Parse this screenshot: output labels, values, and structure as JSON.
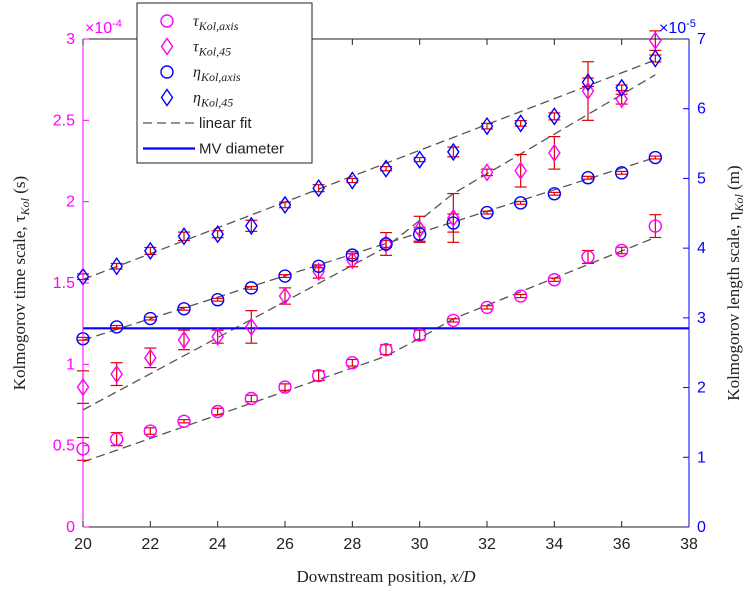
{
  "chart_data": {
    "type": "scatter",
    "xlabel_text": "Downstream position, ",
    "xlabel_var": "x/D",
    "ylabel_left": "Kolmogorov time scale, τ",
    "ylabel_left_sub": "Kol",
    "ylabel_left_unit": " (s)",
    "ylabel_right": "Kolmogorov length scale, η",
    "ylabel_right_sub": "Kol",
    "ylabel_right_unit": " (m)",
    "xlim": [
      20,
      38
    ],
    "xticks": [
      "20",
      "22",
      "24",
      "26",
      "28",
      "30",
      "32",
      "34",
      "36",
      "38"
    ],
    "ylim_left": [
      0,
      3
    ],
    "yticks_left": [
      "0",
      "0.5",
      "1",
      "1.5",
      "2",
      "2.5",
      "3"
    ],
    "left_exponent": "×10",
    "left_exponent_power": "-4",
    "ylim_right": [
      0,
      7
    ],
    "yticks_right": [
      "0",
      "1",
      "2",
      "3",
      "4",
      "5",
      "6",
      "7"
    ],
    "right_exponent": "×10",
    "right_exponent_power": "-5",
    "colors": {
      "tau": "#ff00ff",
      "eta": "#0000ff",
      "errorbar": "#e00000",
      "fit": "#555555",
      "mv": "#0000ff",
      "left_axis": "#ff00ff",
      "right_axis": "#0000ff"
    },
    "series": [
      {
        "name": "τ_Kol,axis",
        "axis": "left",
        "marker": "circle",
        "x": [
          20,
          21,
          22,
          23,
          24,
          25,
          26,
          27,
          28,
          29,
          30,
          31,
          32,
          33,
          34,
          35,
          36,
          37
        ],
        "y": [
          0.48,
          0.54,
          0.59,
          0.65,
          0.71,
          0.79,
          0.86,
          0.93,
          1.01,
          1.09,
          1.18,
          1.27,
          1.35,
          1.42,
          1.52,
          1.66,
          1.7,
          1.85
        ],
        "err": [
          0.07,
          0.04,
          0.02,
          0.01,
          0.02,
          0.02,
          0.02,
          0.03,
          0.02,
          0.03,
          0.03,
          0.01,
          0.01,
          0.01,
          0.01,
          0.04,
          0.02,
          0.07
        ]
      },
      {
        "name": "τ_Kol,45",
        "axis": "left",
        "marker": "diamond",
        "x": [
          20,
          21,
          22,
          23,
          24,
          25,
          26,
          27,
          28,
          29,
          30,
          31,
          32,
          33,
          34,
          35,
          36,
          37
        ],
        "y": [
          0.86,
          0.94,
          1.04,
          1.15,
          1.17,
          1.23,
          1.42,
          1.57,
          1.64,
          1.74,
          1.83,
          1.9,
          2.18,
          2.19,
          2.3,
          2.68,
          2.63,
          2.99
        ],
        "err": [
          0.1,
          0.07,
          0.06,
          0.06,
          0.04,
          0.1,
          0.05,
          0.04,
          0.04,
          0.07,
          0.08,
          0.15,
          0.02,
          0.1,
          0.1,
          0.18,
          0.03,
          0.06
        ]
      },
      {
        "name": "η_Kol,axis",
        "axis": "right",
        "marker": "circle",
        "x": [
          20,
          21,
          22,
          23,
          24,
          25,
          26,
          27,
          28,
          29,
          30,
          31,
          32,
          33,
          34,
          35,
          36,
          37
        ],
        "y": [
          2.7,
          2.87,
          2.99,
          3.13,
          3.26,
          3.43,
          3.6,
          3.74,
          3.9,
          4.06,
          4.2,
          4.36,
          4.51,
          4.65,
          4.78,
          5.01,
          5.08,
          5.3
        ],
        "err": [
          0.02,
          0.02,
          0.02,
          0.02,
          0.02,
          0.02,
          0.02,
          0.02,
          0.05,
          0.05,
          0.1,
          0.13,
          0.02,
          0.02,
          0.02,
          0.02,
          0.02,
          0.02
        ]
      },
      {
        "name": "η_Kol,45",
        "axis": "right",
        "marker": "diamond",
        "x": [
          20,
          21,
          22,
          23,
          24,
          25,
          26,
          27,
          28,
          29,
          30,
          31,
          32,
          33,
          34,
          35,
          36,
          37
        ],
        "y": [
          3.59,
          3.74,
          3.96,
          4.17,
          4.2,
          4.32,
          4.62,
          4.86,
          4.97,
          5.14,
          5.27,
          5.38,
          5.75,
          5.79,
          5.89,
          6.38,
          6.3,
          6.72
        ],
        "err": [
          0.04,
          0.04,
          0.05,
          0.06,
          0.05,
          0.08,
          0.04,
          0.05,
          0.03,
          0.03,
          0.03,
          0.07,
          0.04,
          0.04,
          0.05,
          0.06,
          0.04,
          0.05
        ]
      }
    ],
    "linear_fits": [
      {
        "axis": "left",
        "x": [
          20,
          29,
          30,
          31,
          37
        ],
        "y": [
          0.4,
          1.05,
          1.16,
          1.28,
          1.78
        ]
      },
      {
        "axis": "left",
        "x": [
          20,
          29,
          31,
          37
        ],
        "y": [
          0.72,
          1.72,
          2.05,
          2.78
        ]
      },
      {
        "axis": "right",
        "x": [
          20,
          37
        ],
        "y": [
          2.68,
          5.3
        ]
      },
      {
        "axis": "right",
        "x": [
          20,
          37
        ],
        "y": [
          3.55,
          6.7
        ]
      }
    ],
    "mv_diameter": {
      "axis": "right",
      "y": 2.85
    },
    "legend": {
      "placement": "top-left",
      "entries": [
        {
          "label": "τ",
          "sub": "Kol,axis",
          "marker": "circle",
          "color": "#ff00ff"
        },
        {
          "label": "τ",
          "sub": "Kol,45",
          "marker": "diamond",
          "color": "#ff00ff"
        },
        {
          "label": "η",
          "sub": "Kol,axis",
          "marker": "circle",
          "color": "#0000ff"
        },
        {
          "label": "η",
          "sub": "Kol,45",
          "marker": "diamond",
          "color": "#0000ff"
        },
        {
          "label": "linear fit",
          "sub": "",
          "marker": "dashed-line",
          "color": "#555555"
        },
        {
          "label": "MV diameter",
          "sub": "",
          "marker": "solid-line",
          "color": "#0000ff"
        }
      ]
    },
    "grid": false
  }
}
